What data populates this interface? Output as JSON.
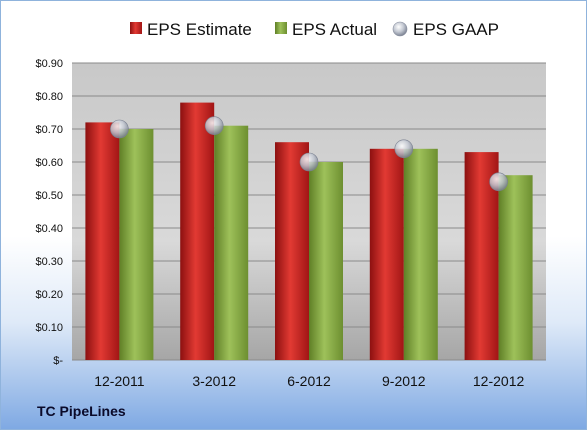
{
  "company": "TC PipeLines",
  "colors": {
    "estimate": "#d42024",
    "actual": "#8db048",
    "gaap": "#c8cdd8"
  },
  "chart_data": {
    "type": "bar",
    "categories": [
      "12-2011",
      "3-2012",
      "6-2012",
      "9-2012",
      "12-2012"
    ],
    "series": [
      {
        "name": "EPS Estimate",
        "type": "bar",
        "values": [
          0.72,
          0.78,
          0.66,
          0.64,
          0.63
        ]
      },
      {
        "name": "EPS Actual",
        "type": "bar",
        "values": [
          0.7,
          0.71,
          0.6,
          0.64,
          0.56
        ]
      },
      {
        "name": "EPS GAAP",
        "type": "scatter",
        "values": [
          0.7,
          0.71,
          0.6,
          0.64,
          0.54
        ]
      }
    ],
    "y_ticks": [
      {
        "value": 0.9,
        "label": "$0.90"
      },
      {
        "value": 0.8,
        "label": "$0.80"
      },
      {
        "value": 0.7,
        "label": "$0.70"
      },
      {
        "value": 0.6,
        "label": "$0.60"
      },
      {
        "value": 0.5,
        "label": "$0.50"
      },
      {
        "value": 0.4,
        "label": "$0.40"
      },
      {
        "value": 0.3,
        "label": "$0.30"
      },
      {
        "value": 0.2,
        "label": "$0.20"
      },
      {
        "value": 0.1,
        "label": "$0.10"
      },
      {
        "value": 0.0,
        "label": "$-"
      }
    ],
    "ylim": [
      0,
      0.9
    ],
    "grid": true,
    "legend_position": "top"
  }
}
